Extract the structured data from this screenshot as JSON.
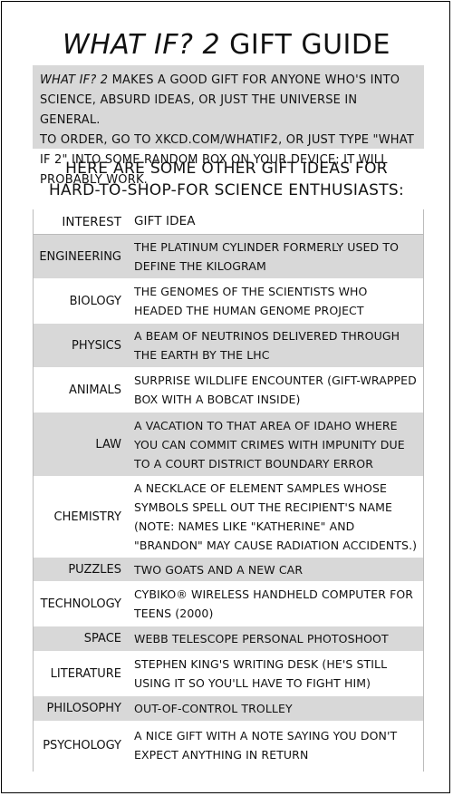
{
  "title": {
    "emphasis": "What If? 2",
    "rest": "Gift Guide"
  },
  "intro": {
    "line1_em": "What If? 2",
    "line1_rest": "makes a good gift for anyone who's into science, absurd ideas, or just the universe in general.",
    "line2": "To order, go to xkcd.com/whatif2, or just type \"What If 2\" into some random box on your device; it will probably work."
  },
  "subhead": {
    "line1": "Here are some other gift ideas for",
    "line2": "hard-to-shop-for science enthusiasts:"
  },
  "table": {
    "header": {
      "interest": "Interest",
      "gift": "Gift Idea"
    },
    "rows": [
      {
        "interest": "Engineering",
        "gift": "The platinum cylinder formerly used to define the kilogram"
      },
      {
        "interest": "Biology",
        "gift": "The genomes of the scientists who headed the Human Genome Project"
      },
      {
        "interest": "Physics",
        "gift": "A beam of neutrinos delivered through the Earth by the LHC"
      },
      {
        "interest": "Animals",
        "gift": "Surprise wildlife encounter (gift-wrapped box with a bobcat inside)"
      },
      {
        "interest": "Law",
        "gift": "A vacation to that area of Idaho where you can commit crimes with impunity due to a court district boundary error"
      },
      {
        "interest": "Chemistry",
        "gift": "A necklace of element samples whose symbols spell out the recipient's name (note: names like \"Katherine\" and \"Brandon\" may cause radiation accidents.)"
      },
      {
        "interest": "Puzzles",
        "gift": "Two goats and a new car"
      },
      {
        "interest": "Technology",
        "gift": "Cybiko® wireless handheld computer for teens (2000)"
      },
      {
        "interest": "Space",
        "gift": "Webb Telescope personal photoshoot"
      },
      {
        "interest": "Literature",
        "gift": "Stephen King's writing desk (he's still using it so you'll have to fight him)"
      },
      {
        "interest": "Philosophy",
        "gift": "Out-of-control trolley"
      },
      {
        "interest": "Psychology",
        "gift": "A nice gift with a note saying you don't expect anything in return"
      }
    ]
  }
}
